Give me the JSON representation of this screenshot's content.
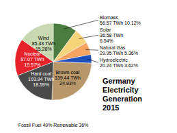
{
  "chart_data": {
    "type": "pie",
    "title": "Germany\nElectricity\nGeneration\n2015",
    "subtitle": "Fossil Fuel 49% Renewable 36%",
    "categories": [
      "Biomass\n56.57 TWh 10.12%",
      "Solar\n36.58 TWh\n6.54%",
      "Natural Gas\n29.95 TWh 5.36%",
      "Hydroelectric\n20.24 TWh 3.62%",
      "Brown coal\n139.44 TWh\n24.93%",
      "Hard coal\n103.94 TWh\n18.59%",
      "Nuclear\n87.07 TWh\n15.57%",
      "Wind\n85.43 TWh\n15.28%"
    ],
    "values": [
      10.12,
      6.54,
      5.36,
      3.62,
      24.93,
      18.59,
      15.57,
      15.28
    ],
    "colors": [
      "#4a7c3f",
      "#f5d47a",
      "#f4a460",
      "#1e4fbd",
      "#b8976a",
      "#4a4a4a",
      "#e8222a",
      "#c8d8b0"
    ]
  }
}
